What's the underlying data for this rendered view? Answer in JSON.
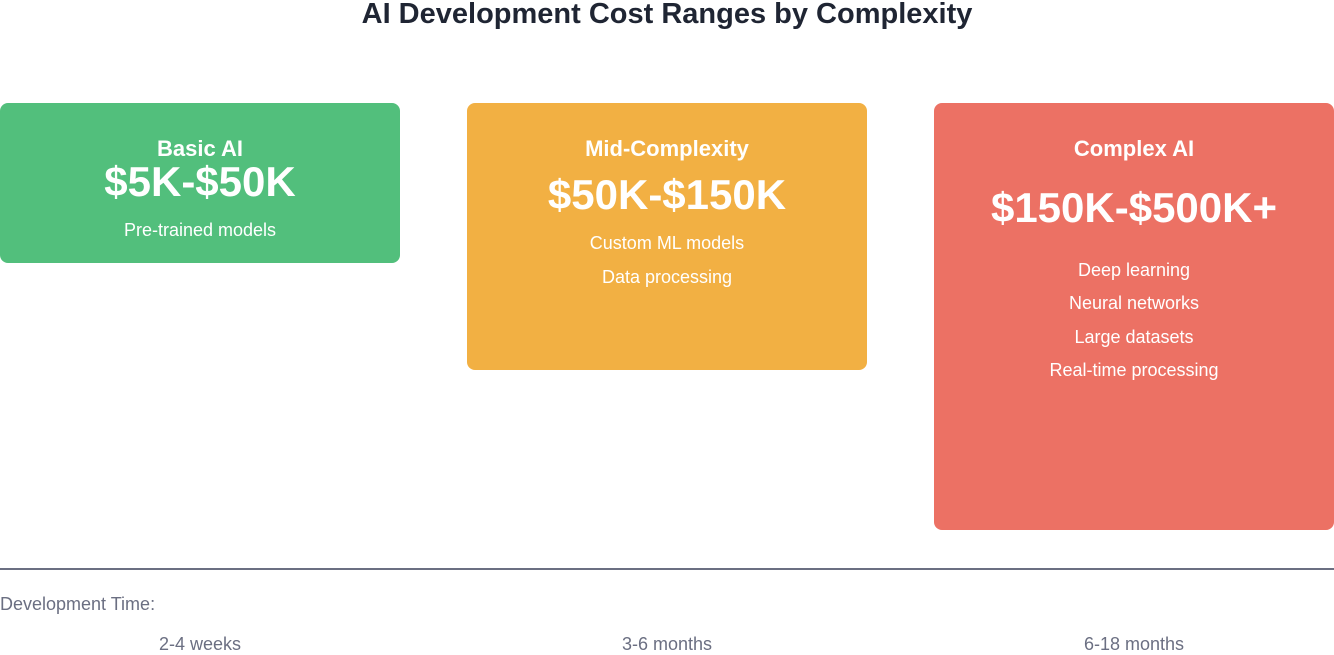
{
  "title": "AI Development Cost Ranges by Complexity",
  "colors": {
    "basic": "#52bf7c",
    "mid": "#f2b043",
    "complex": "#ec7164",
    "axis": "#6b6f82"
  },
  "tiers": [
    {
      "name": "Basic AI",
      "price": "$5K-$50K",
      "features": [
        "Pre-trained models"
      ],
      "time": "2-4 weeks"
    },
    {
      "name": "Mid-Complexity",
      "price": "$50K-$150K",
      "features": [
        "Custom ML models",
        "Data processing"
      ],
      "time": "3-6 months"
    },
    {
      "name": "Complex AI",
      "price": "$150K-$500K+",
      "features": [
        "Deep learning",
        "Neural networks",
        "Large datasets",
        "Real-time processing"
      ],
      "time": "6-18 months"
    }
  ],
  "timeline_label": "Development Time:"
}
